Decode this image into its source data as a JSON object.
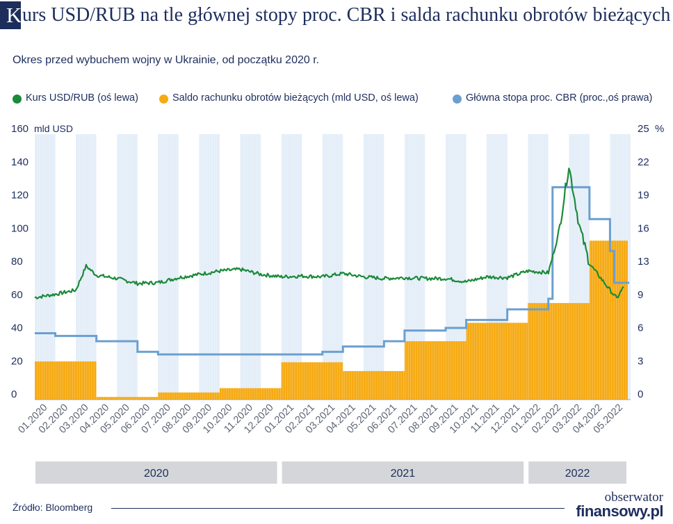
{
  "header": {
    "badge_letter": "K",
    "title_rest": "urs USD/RUB na tle głównej stopy proc. CBR i salda rachunku obrotów bieżących",
    "subtitle": "Okres przed wybuchem wojny w Ukrainie, od początku 2020 r."
  },
  "legend": [
    {
      "label": "Kurs USD/RUB (oś lewa)",
      "color": "#1b8a3a"
    },
    {
      "label": "Saldo rachunku obrotów bieżących (mld USD, oś lewa)",
      "color": "#f6aa12"
    },
    {
      "label": "Główna stopa proc. CBR (proc.,oś prawa)",
      "color": "#6a9fd1"
    }
  ],
  "source": "Źródło: Bloomberg",
  "brand": {
    "line1": "obserwator",
    "line2": "finansowy.pl"
  },
  "chart_data": {
    "type": "bar+line",
    "left_axis": {
      "label": "mld USD",
      "ticks": [
        "0",
        "20",
        "40",
        "60",
        "80",
        "100",
        "120",
        "140",
        "160"
      ],
      "range": [
        0,
        160
      ]
    },
    "right_axis": {
      "label": "%",
      "ticks": [
        "0",
        "3",
        "6",
        "9",
        "13",
        "16",
        "19",
        "22",
        "25"
      ],
      "range": [
        0,
        25
      ]
    },
    "months": [
      "01.2020",
      "02.2020",
      "03.2020",
      "04.2020",
      "05.2020",
      "06.2020",
      "07.2020",
      "08.2020",
      "09.2020",
      "10.2020",
      "11.2020",
      "12.2020",
      "01.2021",
      "02.2021",
      "03.2021",
      "04.2021",
      "05.2021",
      "06.2021",
      "07.2021",
      "08.2021",
      "09.2021",
      "10.2021",
      "11.2021",
      "12.2021",
      "01.2022",
      "02.2022",
      "03.2022",
      "04.2022",
      "05.2022"
    ],
    "years": [
      {
        "label": "2020",
        "start": 0,
        "end": 12
      },
      {
        "label": "2021",
        "start": 12,
        "end": 24
      },
      {
        "label": "2022",
        "start": 24,
        "end": 29
      }
    ],
    "series": [
      {
        "name": "Saldo rachunku obrotów bieżących (mld USD, oś lewa)",
        "kind": "bar",
        "axis": "left",
        "unit": "mld USD",
        "quarters": [
          {
            "start": "01.2020",
            "end": "03.2020",
            "value": 23
          },
          {
            "start": "04.2020",
            "end": "06.2020",
            "value": 1.6
          },
          {
            "start": "07.2020",
            "end": "09.2020",
            "value": 4.3
          },
          {
            "start": "10.2020",
            "end": "12.2020",
            "value": 6.9
          },
          {
            "start": "01.2021",
            "end": "03.2021",
            "value": 22.5
          },
          {
            "start": "04.2021",
            "end": "06.2021",
            "value": 17.2
          },
          {
            "start": "07.2021",
            "end": "09.2021",
            "value": 35.2
          },
          {
            "start": "10.2021",
            "end": "12.2021",
            "value": 46.3
          },
          {
            "start": "01.2022",
            "end": "03.2022",
            "value": 58.2
          },
          {
            "start": "04.2022",
            "end": "05.2022",
            "value": 95.8
          }
        ]
      },
      {
        "name": "Główna stopa proc. CBR (proc.,oś prawa)",
        "kind": "step",
        "axis": "right",
        "unit": "%",
        "points": [
          {
            "date": "01.2020",
            "value": 6.25
          },
          {
            "date": "02.2020",
            "value": 6.0
          },
          {
            "date": "04.2020",
            "value": 5.5
          },
          {
            "date": "06.2020",
            "value": 4.5
          },
          {
            "date": "07.2020",
            "value": 4.25
          },
          {
            "date": "03.2021",
            "value": 4.5
          },
          {
            "date": "04.2021",
            "value": 5.0
          },
          {
            "date": "06.2021",
            "value": 5.5
          },
          {
            "date": "07.2021",
            "value": 6.5
          },
          {
            "date": "09.2021",
            "value": 6.75
          },
          {
            "date": "10.2021",
            "value": 7.5
          },
          {
            "date": "12.2021",
            "value": 8.5
          },
          {
            "date": "02.2022",
            "value": 9.5
          },
          {
            "date": "02.2022",
            "value": 20.0
          },
          {
            "date": "04.2022",
            "value": 17.0
          },
          {
            "date": "05.2022",
            "value": 14.0
          },
          {
            "date": "05.2022",
            "value": 11.0
          }
        ]
      },
      {
        "name": "Kurs USD/RUB (oś lewa)",
        "kind": "line",
        "axis": "left",
        "unit": "RUB",
        "points": [
          {
            "date": "01.2020",
            "value": 61.5
          },
          {
            "date": "02.2020",
            "value": 63.5
          },
          {
            "date": "03.2020",
            "value": 66
          },
          {
            "date": "03.2020",
            "value": 80.5
          },
          {
            "date": "04.2020",
            "value": 75
          },
          {
            "date": "05.2020",
            "value": 73
          },
          {
            "date": "06.2020",
            "value": 70
          },
          {
            "date": "07.2020",
            "value": 70.5
          },
          {
            "date": "08.2020",
            "value": 73.5
          },
          {
            "date": "09.2020",
            "value": 75.5
          },
          {
            "date": "10.2020",
            "value": 77.5
          },
          {
            "date": "11.2020",
            "value": 78.5
          },
          {
            "date": "12.2020",
            "value": 75.5
          },
          {
            "date": "01.2021",
            "value": 74
          },
          {
            "date": "02.2021",
            "value": 74.5
          },
          {
            "date": "03.2021",
            "value": 74
          },
          {
            "date": "04.2021",
            "value": 76
          },
          {
            "date": "05.2021",
            "value": 74
          },
          {
            "date": "06.2021",
            "value": 73
          },
          {
            "date": "07.2021",
            "value": 73.5
          },
          {
            "date": "08.2021",
            "value": 73
          },
          {
            "date": "09.2021",
            "value": 73
          },
          {
            "date": "10.2021",
            "value": 71
          },
          {
            "date": "11.2021",
            "value": 74
          },
          {
            "date": "12.2021",
            "value": 73.5
          },
          {
            "date": "01.2022",
            "value": 77.5
          },
          {
            "date": "02.2022",
            "value": 76.5
          },
          {
            "date": "02.2022",
            "value": 100
          },
          {
            "date": "03.2022",
            "value": 141
          },
          {
            "date": "03.2022",
            "value": 105
          },
          {
            "date": "04.2022",
            "value": 82
          },
          {
            "date": "05.2022",
            "value": 66
          },
          {
            "date": "05.2022",
            "value": 61
          },
          {
            "date": "05.2022",
            "value": 68
          }
        ]
      }
    ]
  }
}
